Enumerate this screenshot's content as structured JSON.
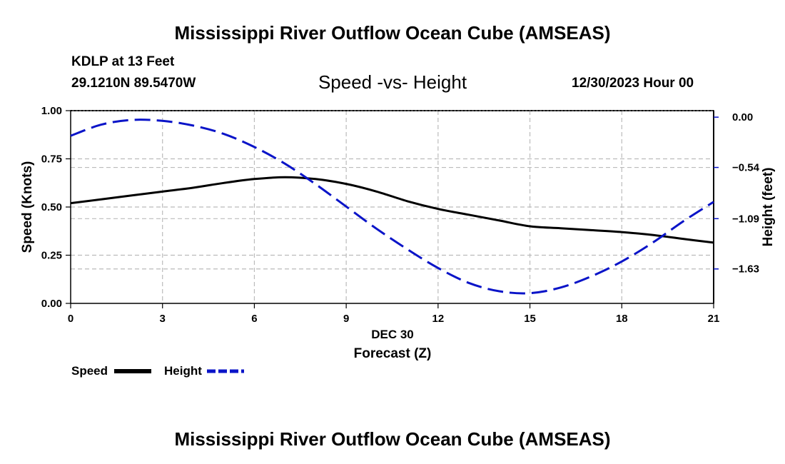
{
  "header": {
    "title": "Mississippi River Outflow Ocean Cube (AMSEAS)",
    "station": "KDLP at 13 Feet",
    "coords": "29.1210N  89.5470W",
    "date": "12/30/2023 Hour 00"
  },
  "footer": {
    "title": "Mississippi River Outflow Ocean Cube (AMSEAS)"
  },
  "colors": {
    "speed": "#000000",
    "height": "#0a14c8",
    "grid": "#bbbbbb"
  },
  "chart_data": {
    "type": "line",
    "title": "Speed -vs- Height",
    "xlabel": "Forecast (Z)",
    "x_date_label": "DEC 30",
    "ylabel": "Speed (Knots)",
    "y2label": "Height (feet)",
    "xlim": [
      0,
      21
    ],
    "ylim": [
      0,
      1
    ],
    "y2lim": [
      -2.0,
      0.07
    ],
    "x_ticks": [
      "0",
      "3",
      "6",
      "9",
      "12",
      "15",
      "18",
      "21"
    ],
    "y_ticks": [
      "0.00",
      "0.25",
      "0.50",
      "0.75",
      "1.00"
    ],
    "y2_ticks": [
      "0.00",
      "−0.54",
      "−1.09",
      "−1.63"
    ],
    "legend": {
      "placement": "bottom-left",
      "speed_label": "Speed",
      "height_label": "Height"
    },
    "series": [
      {
        "name": "Speed",
        "axis": "left",
        "style": "solid",
        "x": [
          0,
          1,
          2,
          3,
          4,
          5,
          6,
          7,
          8,
          9,
          10,
          11,
          12,
          13,
          14,
          15,
          16,
          17,
          18,
          19,
          20,
          21
        ],
        "values": [
          0.52,
          0.54,
          0.56,
          0.58,
          0.6,
          0.625,
          0.645,
          0.655,
          0.645,
          0.62,
          0.58,
          0.53,
          0.49,
          0.46,
          0.43,
          0.4,
          0.39,
          0.38,
          0.37,
          0.355,
          0.335,
          0.315
        ]
      },
      {
        "name": "Height",
        "axis": "right",
        "style": "dashed",
        "x": [
          0,
          1,
          2,
          3,
          4,
          5,
          6,
          7,
          8,
          9,
          10,
          11,
          12,
          13,
          14,
          15,
          16,
          17,
          18,
          19,
          20,
          21
        ],
        "values": [
          -0.2,
          -0.08,
          -0.03,
          -0.04,
          -0.09,
          -0.18,
          -0.32,
          -0.5,
          -0.72,
          -0.96,
          -1.2,
          -1.42,
          -1.62,
          -1.78,
          -1.87,
          -1.89,
          -1.83,
          -1.71,
          -1.55,
          -1.35,
          -1.12,
          -0.91
        ]
      }
    ]
  }
}
